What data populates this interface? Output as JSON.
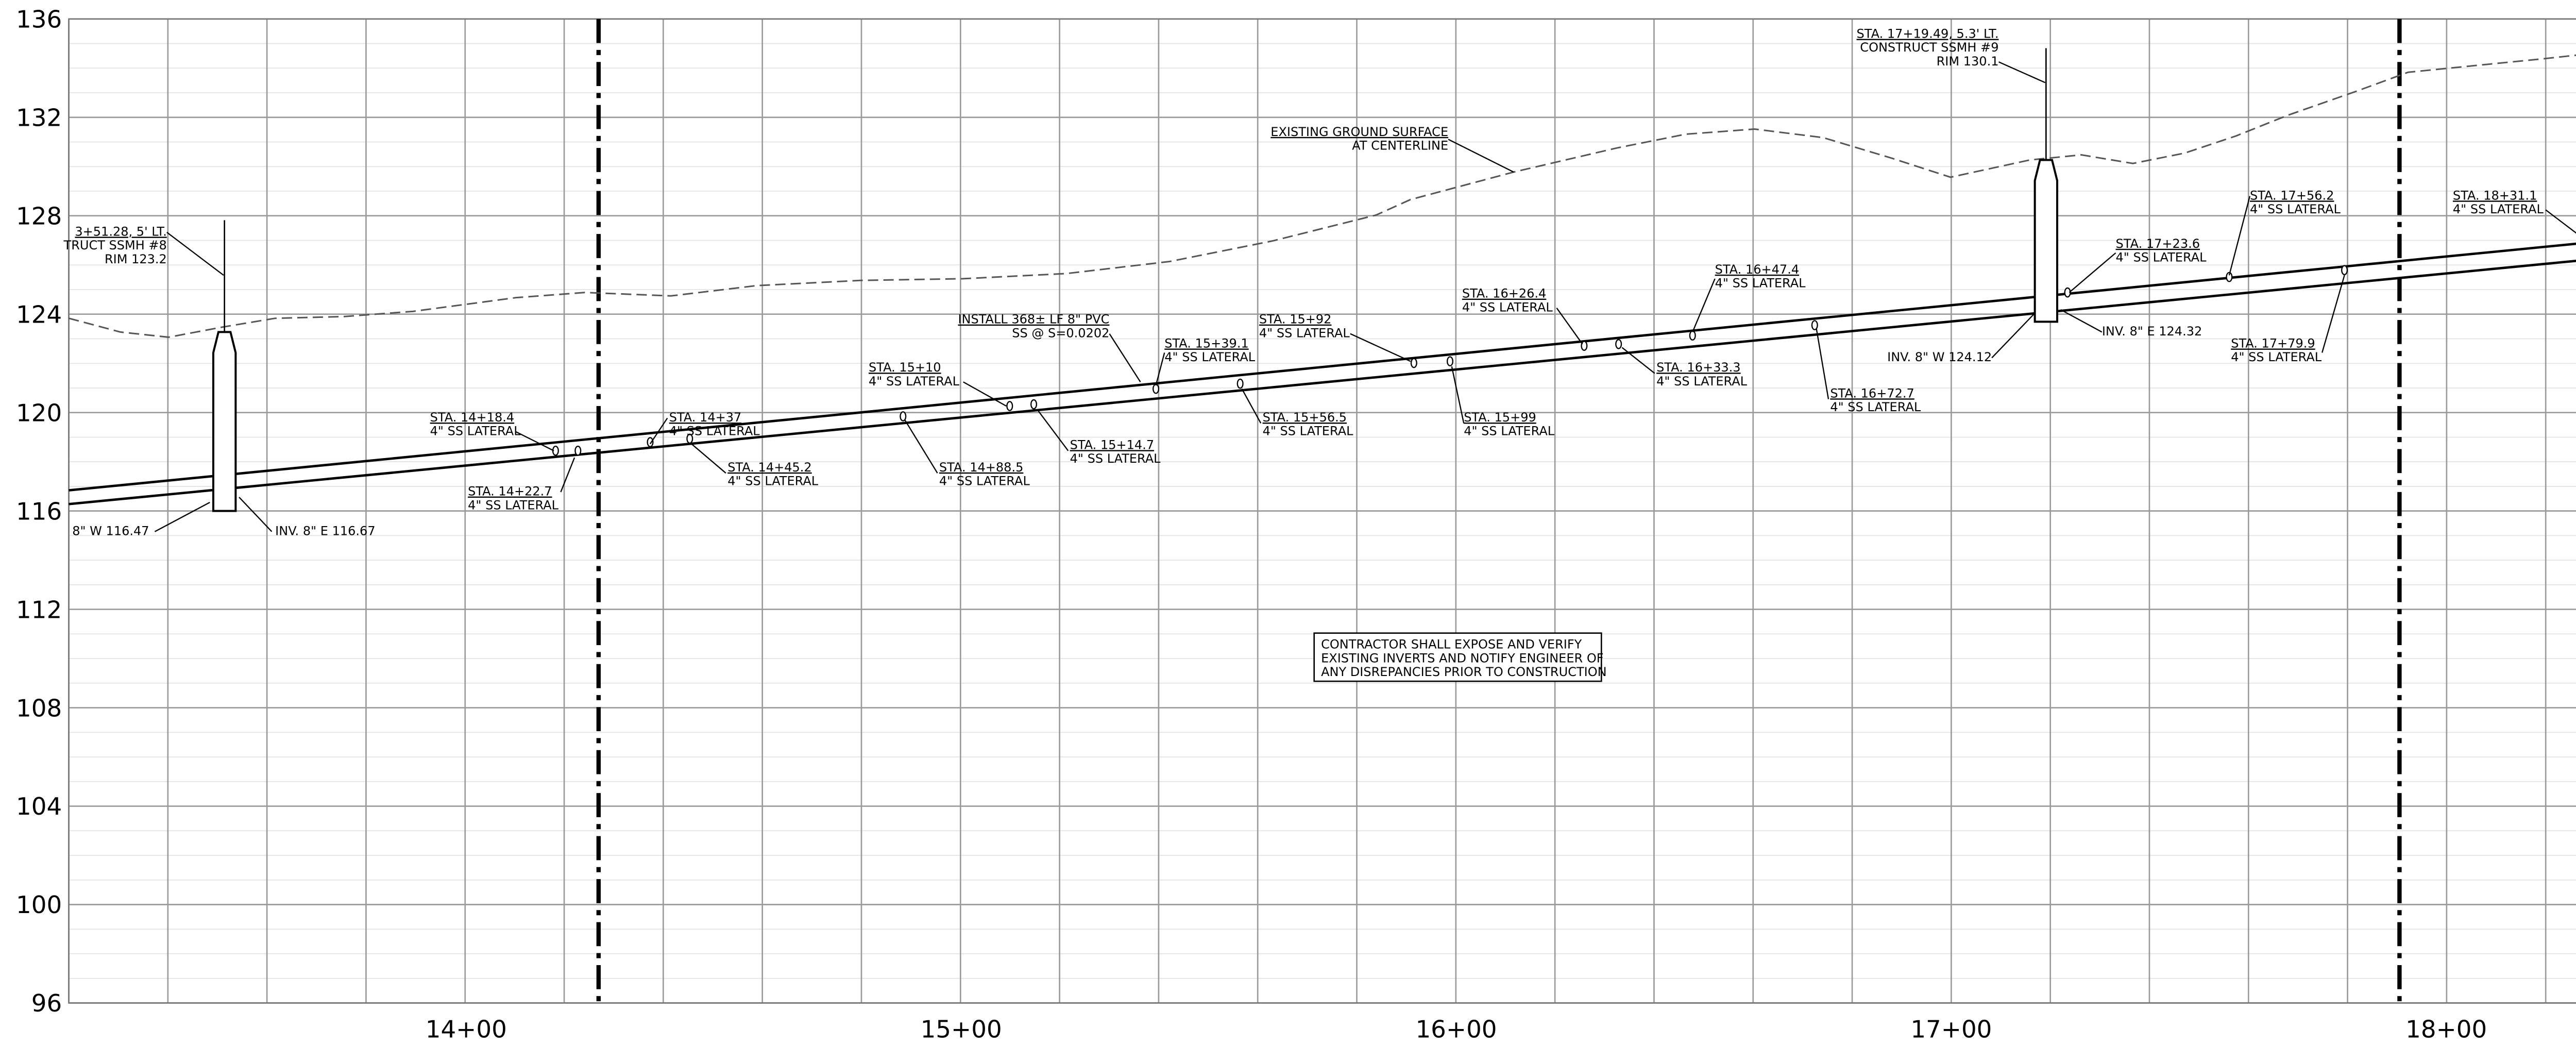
{
  "axis": {
    "elevations": [
      "136",
      "132",
      "128",
      "124",
      "120",
      "116",
      "112",
      "108",
      "104",
      "100",
      "96"
    ],
    "stations": [
      "14+00",
      "15+00",
      "16+00",
      "17+00",
      "18+00"
    ]
  },
  "annotations": [
    {
      "lines": [
        "3+51.28, 5' LT.",
        "TRUCT SSMH #8",
        "RIM 123.2"
      ]
    },
    {
      "lines": [
        "8\" W 116.47"
      ]
    },
    {
      "lines": [
        "INV. 8\" E 116.67"
      ]
    },
    {
      "lines": [
        "STA. 14+18.4",
        "4\" SS LATERAL"
      ]
    },
    {
      "lines": [
        "STA. 14+22.7",
        "4\" SS LATERAL"
      ]
    },
    {
      "lines": [
        "STA. 14+37",
        "4\" SS LATERAL"
      ]
    },
    {
      "lines": [
        "STA. 14+45.2",
        "4\" SS LATERAL"
      ]
    },
    {
      "lines": [
        "STA. 15+10",
        "4\" SS LATERAL"
      ]
    },
    {
      "lines": [
        "STA. 14+88.5",
        "4\" SS LATERAL"
      ]
    },
    {
      "lines": [
        "INSTALL 368± LF 8\" PVC",
        "SS @ S=0.0202"
      ]
    },
    {
      "lines": [
        "STA. 15+14.7",
        "4\" SS LATERAL"
      ]
    },
    {
      "lines": [
        "STA. 15+39.1",
        "4\" SS LATERAL"
      ]
    },
    {
      "lines": [
        "STA. 15+92",
        "4\" SS LATERAL"
      ]
    },
    {
      "lines": [
        "STA. 15+56.5",
        "4\" SS LATERAL"
      ]
    },
    {
      "lines": [
        "STA. 16+26.4",
        "4\" SS LATERAL"
      ]
    },
    {
      "lines": [
        "STA. 15+99",
        "4\" SS LATERAL"
      ]
    },
    {
      "lines": [
        "EXISTING GROUND SURFACE",
        "AT CENTERLINE"
      ]
    },
    {
      "lines": [
        "STA. 16+47.4",
        "4\" SS LATERAL"
      ]
    },
    {
      "lines": [
        "STA. 16+33.3",
        "4\" SS LATERAL"
      ]
    },
    {
      "lines": [
        "STA. 16+72.7",
        "4\" SS LATERAL"
      ]
    },
    {
      "lines": [
        "STA. 17+19.49, 5.3' LT.",
        "CONSTRUCT SSMH #9",
        "RIM 130.1"
      ]
    },
    {
      "lines": [
        "INV. 8\" W 124.12"
      ]
    },
    {
      "lines": [
        "INV. 8\" E 124.32"
      ]
    },
    {
      "lines": [
        "STA. 17+23.6",
        "4\" SS LATERAL"
      ]
    },
    {
      "lines": [
        "STA. 17+56.2",
        "4\" SS LATERAL"
      ]
    },
    {
      "lines": [
        "STA. 17+79.9",
        "4\" SS LATERAL"
      ]
    },
    {
      "lines": [
        "STA. 18+31.1",
        "4\" SS LATERAL"
      ]
    }
  ],
  "note": {
    "lines": [
      "CONTRACTOR SHALL EXPOSE AND VERIFY",
      "EXISTING INVERTS AND NOTIFY ENGINEER OF",
      "ANY DISREPANCIES PRIOR TO CONSTRUCTION"
    ]
  }
}
